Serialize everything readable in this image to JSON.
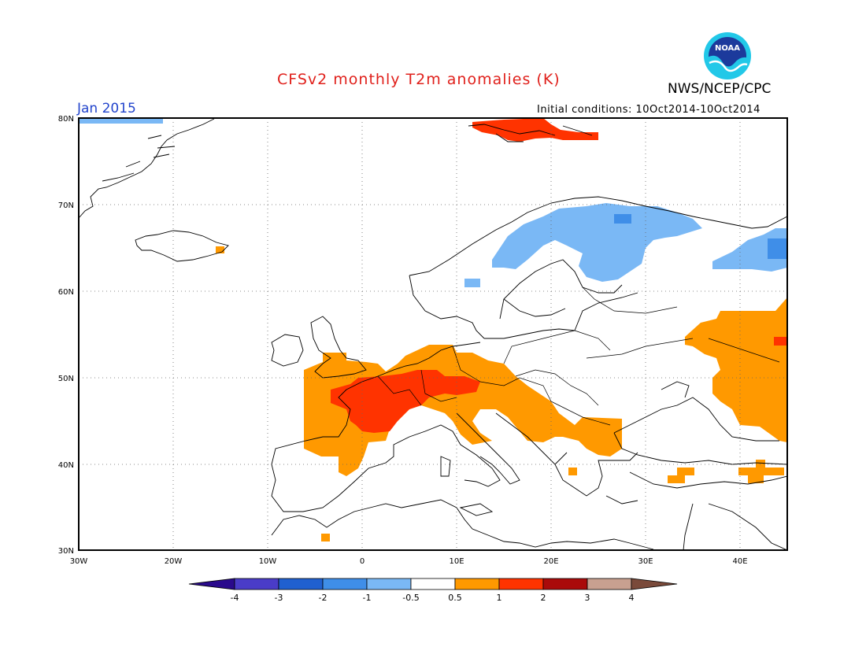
{
  "title": "CFSv2 monthly T2m anomalies (K)",
  "organization": "NWS/NCEP/CPC",
  "logo_text": "NOAA",
  "period": "Jan 2015",
  "initial_conditions": "Initial conditions: 10Oct2014-10Oct2014",
  "map": {
    "lon_range": [
      -30,
      45
    ],
    "lat_range": [
      30,
      80
    ],
    "lat_ticks": [
      "80N",
      "70N",
      "60N",
      "50N",
      "40N",
      "30N"
    ],
    "lon_ticks": [
      "30W",
      "20W",
      "10W",
      "0",
      "10E",
      "20E",
      "30E",
      "40E"
    ],
    "grid": "dotted"
  },
  "legend": {
    "levels": [
      "-4",
      "-3",
      "-2",
      "-1",
      "-0.5",
      "0.5",
      "1",
      "2",
      "3",
      "4"
    ],
    "colors": [
      "#2a0a8c",
      "#4a3cc8",
      "#2060d0",
      "#3f8ee8",
      "#7ab8f5",
      "#ffffff",
      "#ff9900",
      "#ff3300",
      "#aa0a0a",
      "#c8a090",
      "#7a4a3a"
    ]
  },
  "anomaly_regions": [
    {
      "category": "0.5 to 1",
      "color": "#ff9900",
      "area": "France, Benelux, Germany, Alps, Italy, Balkans, Iberia"
    },
    {
      "category": "0.5 to 1",
      "color": "#ff9900",
      "area": "Western Russia"
    },
    {
      "category": "1 to 2",
      "color": "#ff3300",
      "area": "France, southern Germany"
    },
    {
      "category": "1 to 2",
      "color": "#ff3300",
      "area": "Svalbard"
    },
    {
      "category": "-1 to -0.5",
      "color": "#7ab8f5",
      "area": "Northern Scandinavia and Finland"
    },
    {
      "category": "-1 to -0.5",
      "color": "#7ab8f5",
      "area": "Northwest Russia"
    },
    {
      "category": "-1 to -0.5",
      "color": "#7ab8f5",
      "area": "East Greenland"
    }
  ]
}
